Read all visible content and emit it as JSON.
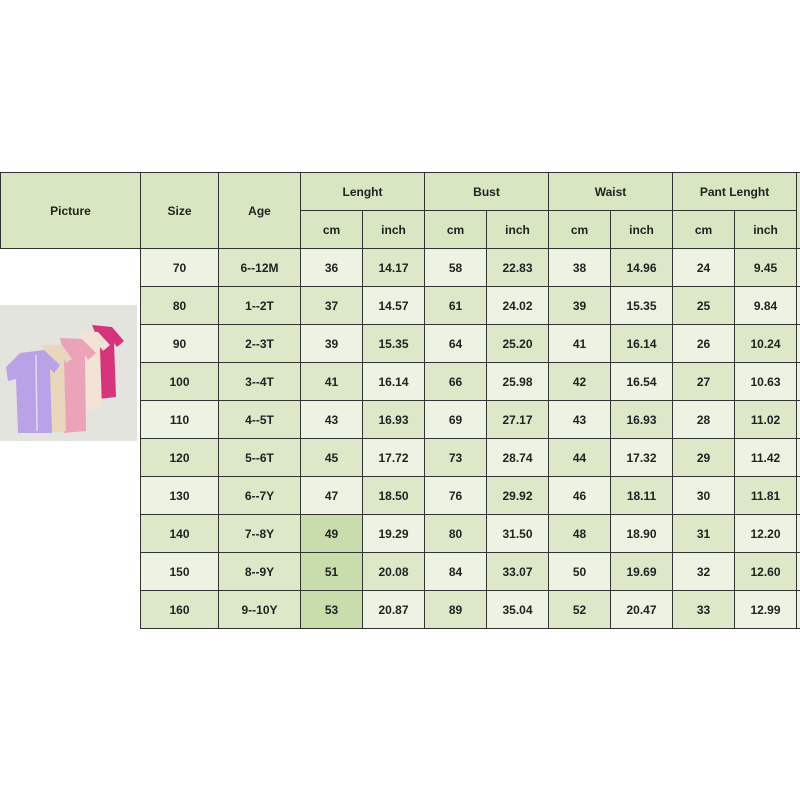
{
  "header": {
    "picture": "Picture",
    "size": "Size",
    "age": "Age",
    "groups": [
      "Lenght",
      "Bust",
      "Waist",
      "Pant Lenght"
    ],
    "units": [
      "cm",
      "inch"
    ]
  },
  "rows": [
    {
      "size": "70",
      "age": "6--12M",
      "values": [
        "36",
        "14.17",
        "58",
        "22.83",
        "38",
        "14.96",
        "24",
        "9.45"
      ]
    },
    {
      "size": "80",
      "age": "1--2T",
      "values": [
        "37",
        "14.57",
        "61",
        "24.02",
        "39",
        "15.35",
        "25",
        "9.84"
      ]
    },
    {
      "size": "90",
      "age": "2--3T",
      "values": [
        "39",
        "15.35",
        "64",
        "25.20",
        "41",
        "16.14",
        "26",
        "10.24"
      ]
    },
    {
      "size": "100",
      "age": "3--4T",
      "values": [
        "41",
        "16.14",
        "66",
        "25.98",
        "42",
        "16.54",
        "27",
        "10.63"
      ]
    },
    {
      "size": "110",
      "age": "4--5T",
      "values": [
        "43",
        "16.93",
        "69",
        "27.17",
        "43",
        "16.93",
        "28",
        "11.02"
      ]
    },
    {
      "size": "120",
      "age": "5--6T",
      "values": [
        "45",
        "17.72",
        "73",
        "28.74",
        "44",
        "17.32",
        "29",
        "11.42"
      ]
    },
    {
      "size": "130",
      "age": "6--7Y",
      "values": [
        "47",
        "18.50",
        "76",
        "29.92",
        "46",
        "18.11",
        "30",
        "11.81"
      ]
    },
    {
      "size": "140",
      "age": "7--8Y",
      "values": [
        "49",
        "19.29",
        "80",
        "31.50",
        "48",
        "18.90",
        "31",
        "12.20"
      ]
    },
    {
      "size": "150",
      "age": "8--9Y",
      "values": [
        "51",
        "20.08",
        "84",
        "33.07",
        "50",
        "19.69",
        "32",
        "12.60"
      ]
    },
    {
      "size": "160",
      "age": "9--10Y",
      "values": [
        "53",
        "20.87",
        "89",
        "35.04",
        "52",
        "20.47",
        "33",
        "12.99"
      ]
    }
  ],
  "colors": {
    "header": "#d8e6c1",
    "cell_light": "#edf3e3",
    "cell_dark": "#dce8c8"
  },
  "product_colors": [
    "#b9a2e6",
    "#e8d6bd",
    "#eaa3b8",
    "#f3e2d6",
    "#d6337c"
  ]
}
